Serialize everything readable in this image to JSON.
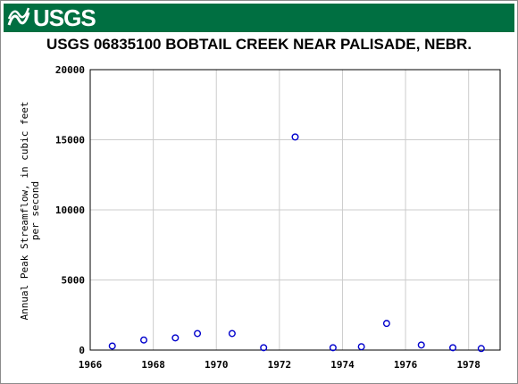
{
  "header": {
    "logo_text": "USGS",
    "colors": {
      "banner": "#006f41",
      "logo_text": "#ffffff"
    }
  },
  "chart_data": {
    "type": "scatter",
    "title": "USGS 06835100 BOBTAIL CREEK NEAR PALISADE, NEBR.",
    "xlabel": "",
    "ylabel": [
      "Annual Peak Streamflow, in cubic feet",
      "per second"
    ],
    "xlim": [
      1966,
      1979
    ],
    "ylim": [
      0,
      20000
    ],
    "xticks": [
      1966,
      1968,
      1970,
      1972,
      1974,
      1976,
      1978
    ],
    "yticks": [
      0,
      5000,
      10000,
      15000,
      20000
    ],
    "grid": true,
    "marker": {
      "shape": "open-circle",
      "color": "#0000cc"
    },
    "points": [
      {
        "x": 1966.7,
        "y": 290
      },
      {
        "x": 1967.7,
        "y": 720
      },
      {
        "x": 1968.7,
        "y": 870
      },
      {
        "x": 1969.4,
        "y": 1180
      },
      {
        "x": 1970.5,
        "y": 1180
      },
      {
        "x": 1971.5,
        "y": 170
      },
      {
        "x": 1972.5,
        "y": 15200
      },
      {
        "x": 1973.7,
        "y": 170
      },
      {
        "x": 1974.6,
        "y": 240
      },
      {
        "x": 1975.4,
        "y": 1900
      },
      {
        "x": 1976.5,
        "y": 360
      },
      {
        "x": 1977.5,
        "y": 170
      },
      {
        "x": 1978.4,
        "y": 110
      }
    ]
  }
}
